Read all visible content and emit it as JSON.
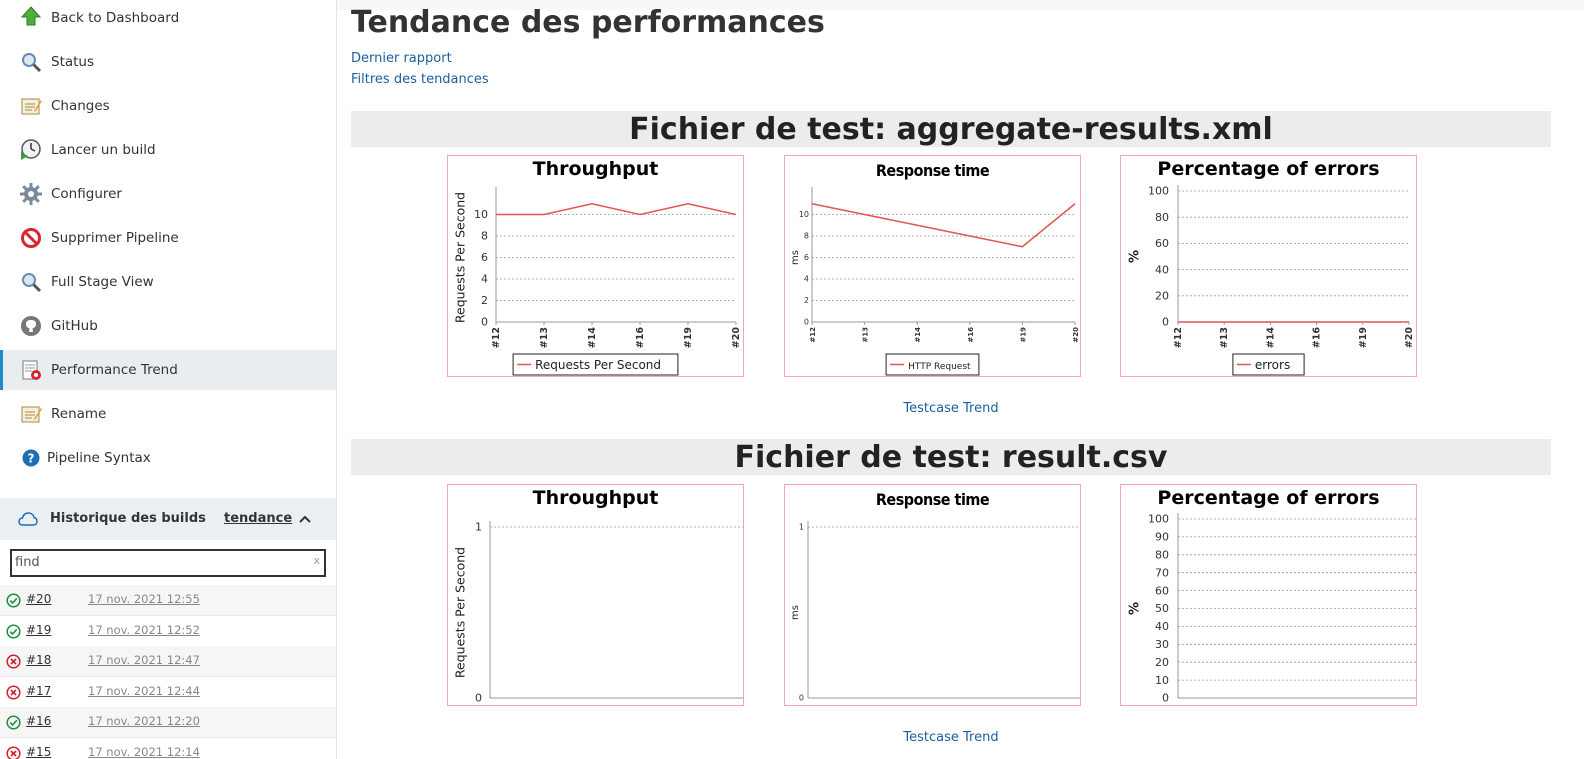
{
  "sidebar": {
    "items": [
      {
        "label": "Back to Dashboard",
        "icon": "up-arrow-icon"
      },
      {
        "label": "Status",
        "icon": "magnifier-icon"
      },
      {
        "label": "Changes",
        "icon": "notepad-icon"
      },
      {
        "label": "Lancer un build",
        "icon": "clock-play-icon"
      },
      {
        "label": "Configurer",
        "icon": "gear-icon"
      },
      {
        "label": "Supprimer Pipeline",
        "icon": "no-entry-icon"
      },
      {
        "label": "Full Stage View",
        "icon": "magnifier-icon"
      },
      {
        "label": "GitHub",
        "icon": "github-icon"
      },
      {
        "label": "Performance Trend",
        "icon": "performance-report-icon"
      },
      {
        "label": "Rename",
        "icon": "notepad-icon"
      },
      {
        "label": "Pipeline Syntax",
        "icon": "help-icon"
      }
    ],
    "active_index": 8
  },
  "history": {
    "title": "Historique des builds",
    "trend_label": "tendance",
    "find_value": "find",
    "find_clear": "x",
    "builds": [
      {
        "number": "#20",
        "date": "17 nov. 2021 12:55",
        "status": "success"
      },
      {
        "number": "#19",
        "date": "17 nov. 2021 12:52",
        "status": "success"
      },
      {
        "number": "#18",
        "date": "17 nov. 2021 12:47",
        "status": "failed"
      },
      {
        "number": "#17",
        "date": "17 nov. 2021 12:44",
        "status": "failed"
      },
      {
        "number": "#16",
        "date": "17 nov. 2021 12:20",
        "status": "success"
      },
      {
        "number": "#15",
        "date": "17 nov. 2021 12:14",
        "status": "failed"
      }
    ]
  },
  "main": {
    "title": "Tendance des performances",
    "links": [
      "Dernier rapport",
      "Filtres des tendances"
    ],
    "testcase_label": "Testcase Trend",
    "sections": [
      {
        "heading": "Fichier de test: aggregate-results.xml"
      },
      {
        "heading": "Fichier de test: result.csv"
      }
    ]
  },
  "colors": {
    "line": "#e05555",
    "link": "#1d5e9e",
    "success": "#1e8e3e",
    "failed": "#d0202e"
  },
  "chart_data": [
    {
      "type": "line",
      "title": "Throughput",
      "categories": [
        "#12",
        "#13",
        "#14",
        "#16",
        "#19",
        "#20"
      ],
      "series": [
        {
          "name": "Requests Per Second",
          "values": [
            10,
            10,
            11,
            10,
            11,
            10
          ]
        }
      ],
      "ylabel": "Requests Per Second",
      "ylim": [
        0,
        12
      ],
      "yticks": [
        0,
        2,
        4,
        6,
        8,
        10
      ],
      "legend": "bottom",
      "grid": true
    },
    {
      "type": "line",
      "title": "Response time",
      "categories": [
        "#12",
        "#13",
        "#14",
        "#16",
        "#19",
        "#20"
      ],
      "series": [
        {
          "name": "HTTP Request",
          "values": [
            11,
            10,
            9,
            8,
            7,
            11
          ]
        }
      ],
      "ylabel": "ms",
      "ylim": [
        0,
        12
      ],
      "yticks": [
        0,
        2,
        4,
        6,
        8,
        10
      ],
      "legend": "bottom",
      "grid": true
    },
    {
      "type": "line",
      "title": "Percentage of errors",
      "categories": [
        "#12",
        "#13",
        "#14",
        "#16",
        "#19",
        "#20"
      ],
      "series": [
        {
          "name": "errors",
          "values": [
            0,
            0,
            0,
            0,
            0,
            0
          ]
        }
      ],
      "ylabel": "%",
      "ylim": [
        0,
        100
      ],
      "yticks": [
        0,
        20,
        40,
        60,
        80,
        100
      ],
      "legend": "bottom",
      "grid": true
    },
    {
      "type": "line",
      "title": "Throughput",
      "categories": [],
      "series": [],
      "ylabel": "Requests Per Second",
      "ylim": [
        0,
        1
      ],
      "yticks": [
        0,
        1
      ],
      "grid": true
    },
    {
      "type": "line",
      "title": "Response time",
      "categories": [],
      "series": [],
      "ylabel": "ms",
      "ylim": [
        0,
        1
      ],
      "yticks": [
        0,
        1
      ],
      "grid": true
    },
    {
      "type": "line",
      "title": "Percentage of errors",
      "categories": [],
      "series": [],
      "ylabel": "%",
      "ylim": [
        0,
        100
      ],
      "yticks": [
        0,
        10,
        20,
        30,
        40,
        50,
        60,
        70,
        80,
        90,
        100
      ],
      "grid": true
    }
  ]
}
